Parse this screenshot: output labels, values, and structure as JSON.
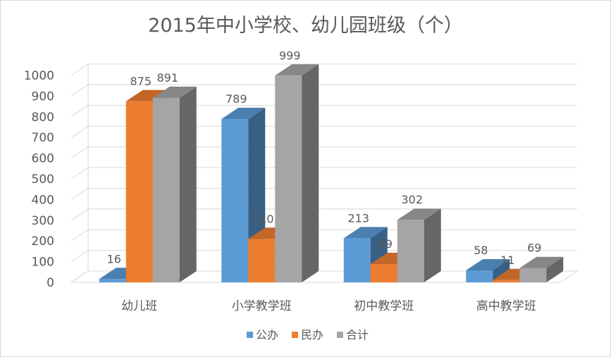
{
  "chart_data": {
    "type": "bar",
    "title": "2015年中小学校、幼儿园班级（个）",
    "categories": [
      "幼儿班",
      "小学教学班",
      "初中教学班",
      "高中教学班"
    ],
    "series": [
      {
        "name": "公办",
        "values": [
          16,
          789,
          213,
          58
        ],
        "color": "#5b9bd5"
      },
      {
        "name": "民办",
        "values": [
          875,
          210,
          89,
          11
        ],
        "color": "#ed7d31"
      },
      {
        "name": "合计",
        "values": [
          891,
          999,
          302,
          69
        ],
        "color": "#a5a5a5"
      }
    ],
    "ylim": [
      0,
      1000
    ],
    "yticks": [
      0,
      100,
      200,
      300,
      400,
      500,
      600,
      700,
      800,
      900,
      1000
    ],
    "grid": true,
    "legend": "bottom",
    "style": "3d-clustered-column"
  }
}
